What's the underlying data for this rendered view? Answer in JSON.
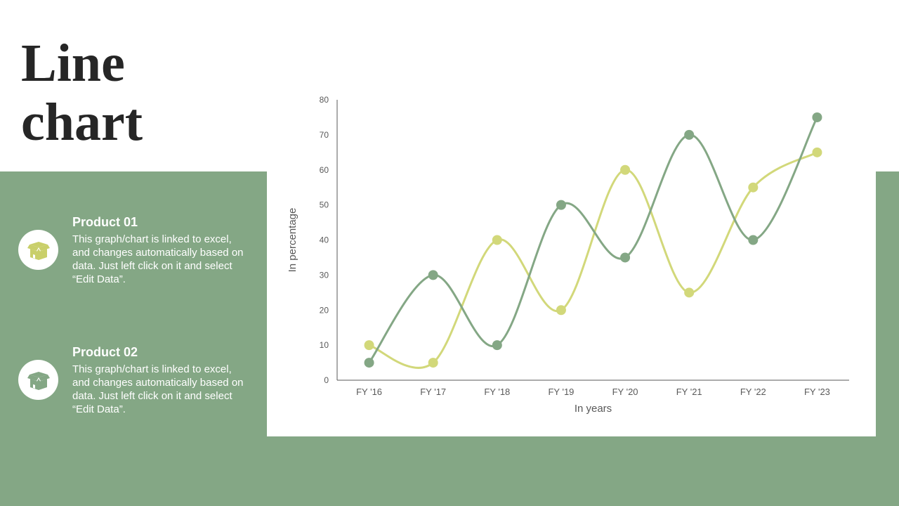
{
  "page": {
    "title_line1": "Line",
    "title_line2": "chart"
  },
  "products": [
    {
      "heading": "Product 01",
      "description": "This graph/chart is linked to excel, and changes automatically based on data. Just left click on it and select “Edit Data”.",
      "icon": "open-box-icon"
    },
    {
      "heading": "Product 02",
      "description": "This graph/chart is linked to excel, and changes automatically based on data. Just left click on it and select “Edit Data”.",
      "icon": "open-box-icon"
    }
  ],
  "colors": {
    "background_band": "#84a785",
    "series_green": "#84a785",
    "series_yellow": "#d2d87a",
    "icon_color": "#c9cf6a",
    "icon_color_2": "#84a785"
  },
  "chart_data": {
    "type": "line",
    "title": "",
    "xlabel": "In years",
    "ylabel": "In percentage",
    "categories": [
      "FY '16",
      "FY '17",
      "FY '18",
      "FY '19",
      "FY '20",
      "FY '21",
      "FY '22",
      "FY '23"
    ],
    "ylim": [
      0,
      80
    ],
    "yticks": [
      0,
      10,
      20,
      30,
      40,
      50,
      60,
      70,
      80
    ],
    "grid": false,
    "legend": "none",
    "smooth": true,
    "series": [
      {
        "color": "#84a785",
        "values": [
          5,
          30,
          10,
          50,
          35,
          70,
          40,
          75
        ]
      },
      {
        "color": "#d2d87a",
        "values": [
          10,
          5,
          40,
          20,
          60,
          25,
          55,
          65
        ]
      }
    ]
  }
}
